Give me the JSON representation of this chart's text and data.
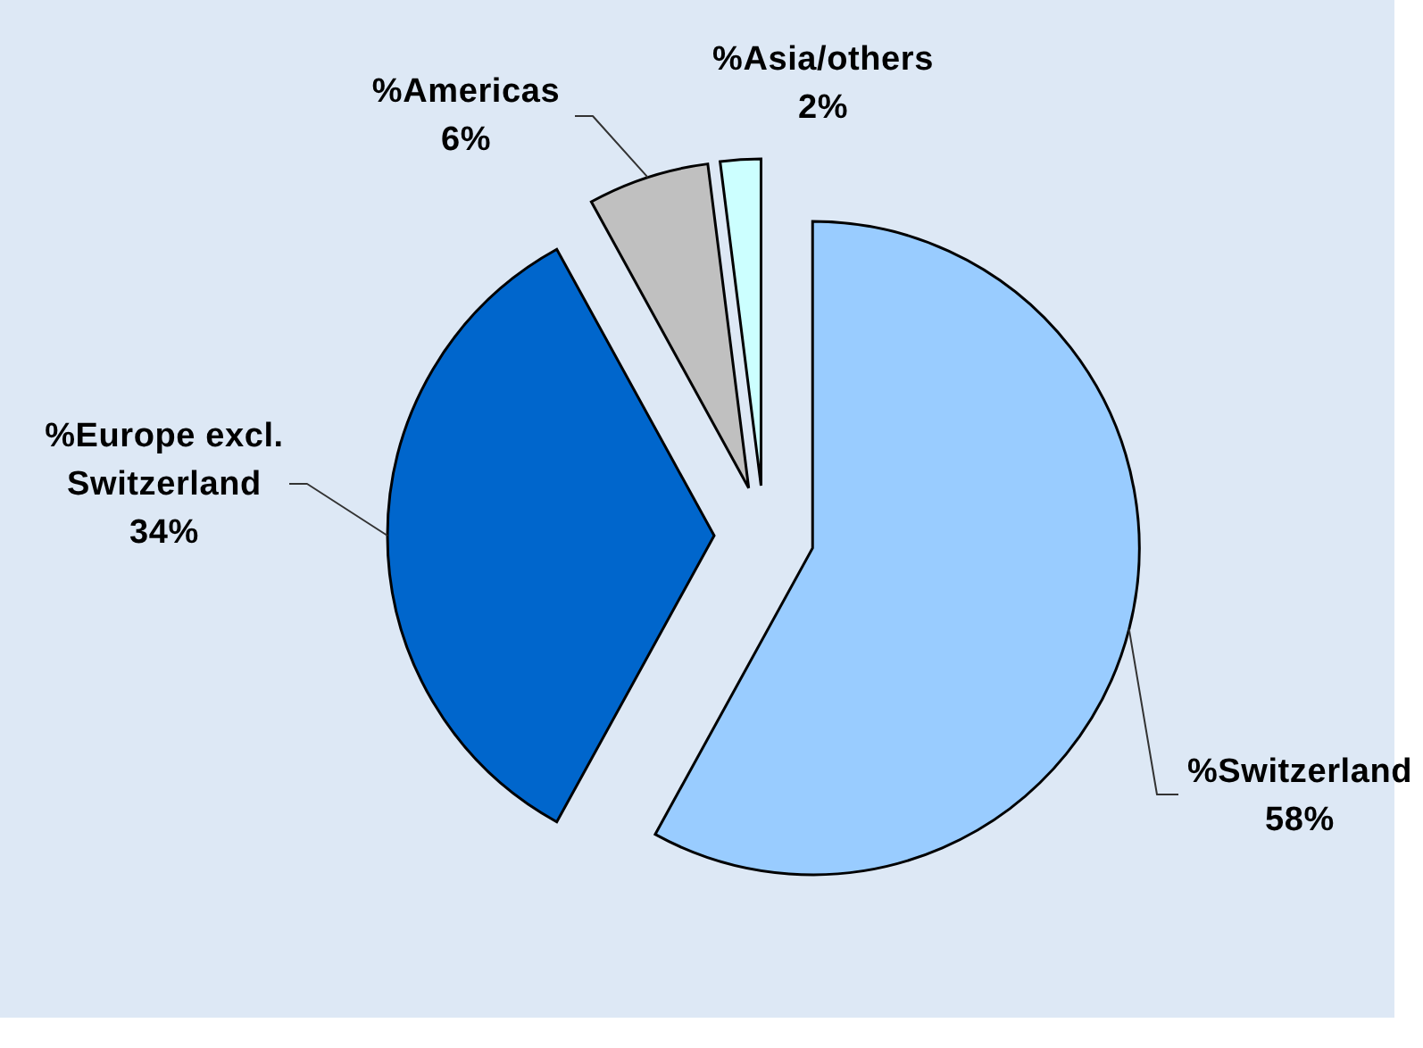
{
  "chart_data": {
    "type": "pie",
    "categories": [
      "%Switzerland",
      "%Europe excl. Switzerland",
      "%Americas",
      "%Asia/others"
    ],
    "values": [
      58,
      34,
      6,
      2
    ],
    "colors": [
      "#99ccff",
      "#0066cc",
      "#c0c0c0",
      "#ccffff"
    ],
    "value_labels": [
      "58%",
      "34%",
      "6%",
      "2%"
    ]
  }
}
